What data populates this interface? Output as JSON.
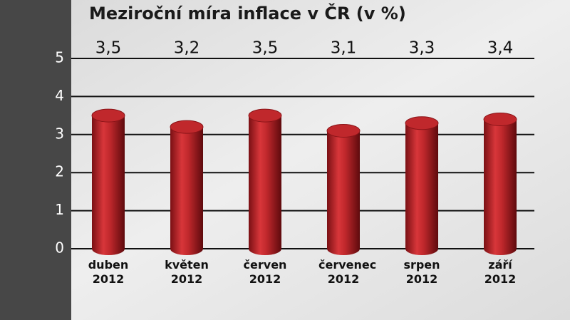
{
  "chart_data": {
    "type": "bar",
    "title": "Meziroční míra inflace v ČR (v %)",
    "categories": [
      "duben 2012",
      "květen 2012",
      "červen 2012",
      "červenec 2012",
      "srpen 2012",
      "září 2012"
    ],
    "values": [
      3.5,
      3.2,
      3.5,
      3.1,
      3.3,
      3.4
    ],
    "value_labels": [
      "3,5",
      "3,2",
      "3,5",
      "3,1",
      "3,3",
      "3,4"
    ],
    "color": "#c0282c",
    "ylim": [
      0,
      5
    ],
    "yticks": [
      0,
      1,
      2,
      3,
      4,
      5
    ],
    "grid": true
  }
}
